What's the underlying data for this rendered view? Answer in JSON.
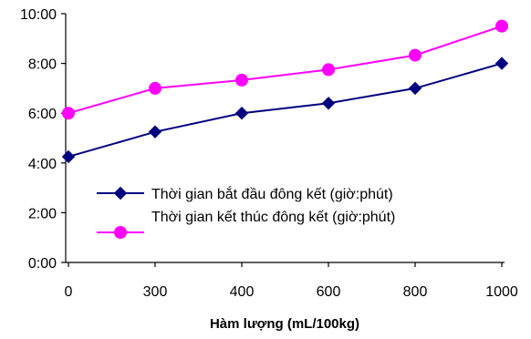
{
  "chart_data": {
    "type": "line",
    "title": "",
    "xlabel": "Hàm lượng (mL/100kg)",
    "ylabel": "",
    "categories": [
      "0",
      "300",
      "400",
      "600",
      "800",
      "1000"
    ],
    "y_unit": "hours (h:mm)",
    "y_ticks": [
      "0:00",
      "2:00",
      "4:00",
      "6:00",
      "8:00",
      "10:00"
    ],
    "ylim": [
      0,
      10
    ],
    "grid": false,
    "legend_position": "center",
    "series": [
      {
        "name": "Thời gian bắt đầu đông kết (giờ:phút)",
        "color": "#000080",
        "marker": "diamond",
        "values": [
          4.25,
          5.25,
          6.0,
          6.4,
          7.0,
          8.0
        ]
      },
      {
        "name": "Thời gian kết thúc đông kết (giờ:phút)",
        "color": "#ff00ff",
        "marker": "circle",
        "values": [
          6.0,
          7.0,
          7.33,
          7.75,
          8.33,
          9.5
        ]
      }
    ]
  }
}
